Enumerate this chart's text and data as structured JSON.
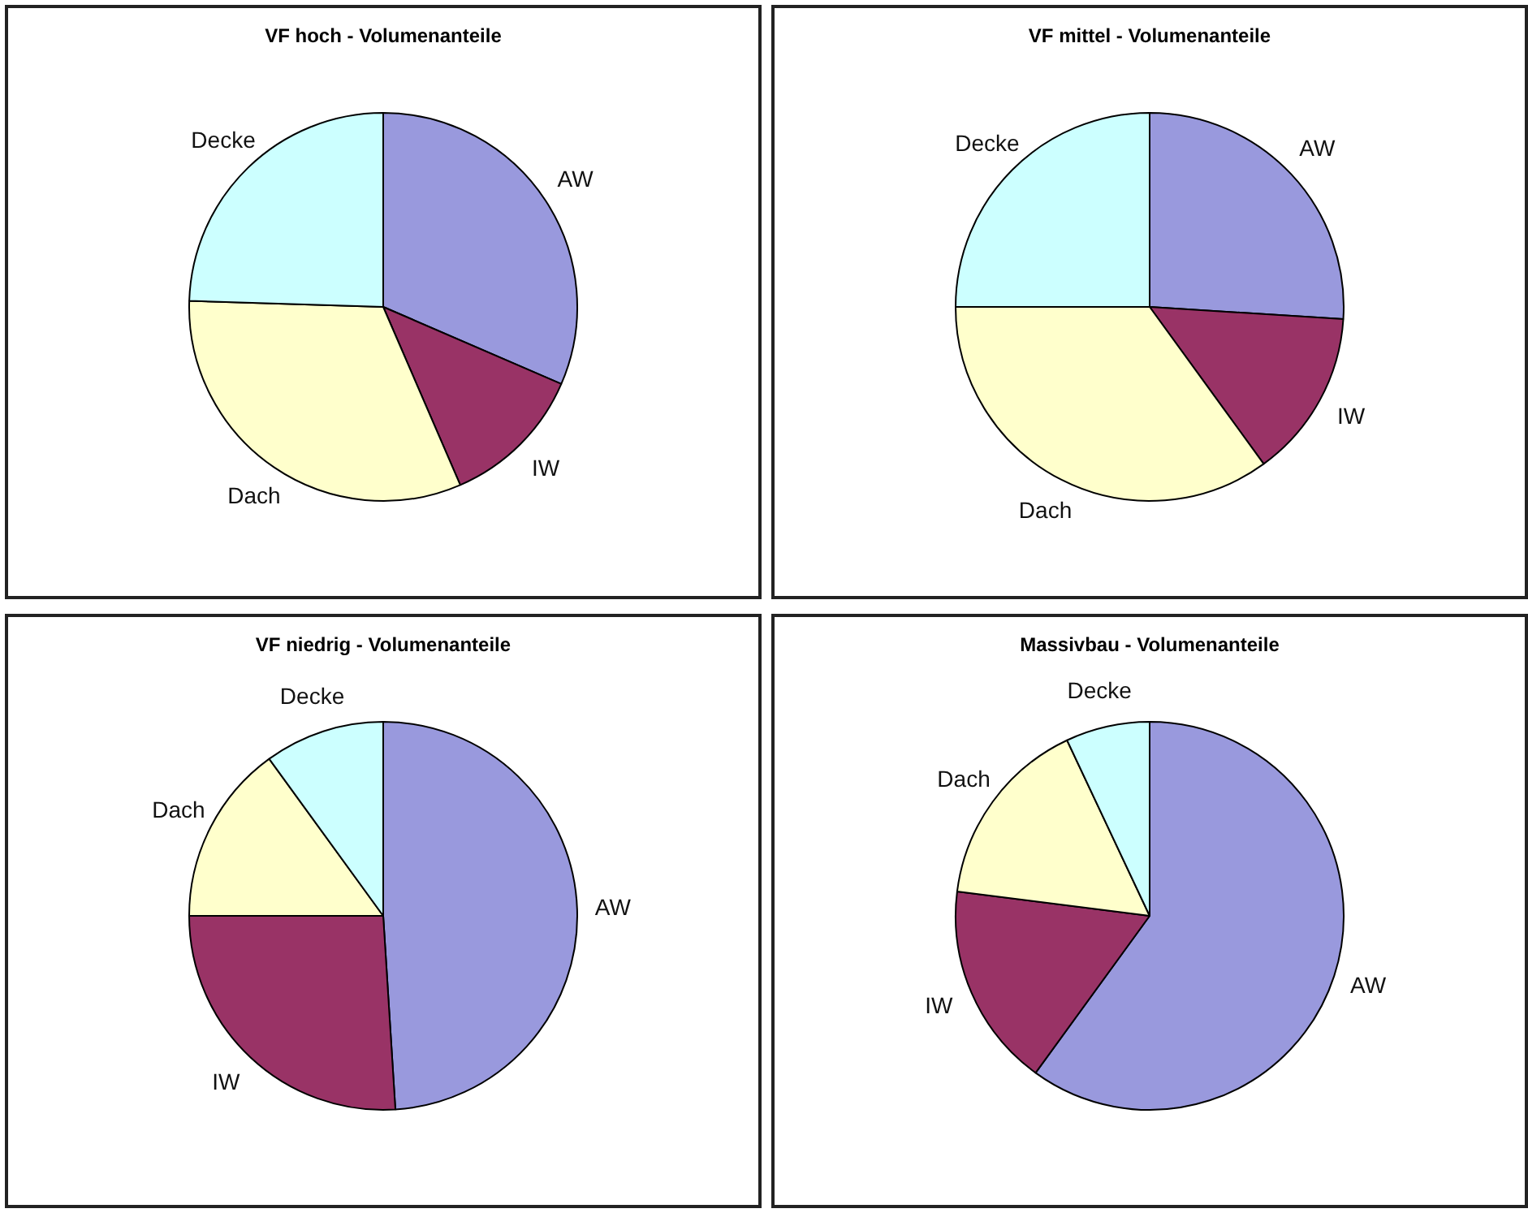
{
  "chart_data": [
    {
      "type": "pie",
      "title": "VF hoch - Volumenanteile",
      "categories": [
        "AW",
        "IW",
        "Dach",
        "Decke"
      ],
      "values": [
        31.5,
        12,
        32,
        24.5
      ],
      "colors": [
        "#9999dd",
        "#993366",
        "#ffffcc",
        "#ccffff"
      ],
      "legend": false
    },
    {
      "type": "pie",
      "title": "VF mittel - Volumenanteile",
      "categories": [
        "AW",
        "IW",
        "Dach",
        "Decke"
      ],
      "values": [
        26,
        14,
        35,
        25
      ],
      "colors": [
        "#9999dd",
        "#993366",
        "#ffffcc",
        "#ccffff"
      ],
      "legend": false
    },
    {
      "type": "pie",
      "title": "VF niedrig - Volumenanteile",
      "categories": [
        "AW",
        "IW",
        "Dach",
        "Decke"
      ],
      "values": [
        49,
        26,
        15,
        10
      ],
      "colors": [
        "#9999dd",
        "#993366",
        "#ffffcc",
        "#ccffff"
      ],
      "legend": false
    },
    {
      "type": "pie",
      "title": "Massivbau - Volumenanteile",
      "categories": [
        "AW",
        "IW",
        "Dach",
        "Decke"
      ],
      "values": [
        60,
        17,
        16,
        7
      ],
      "colors": [
        "#9999dd",
        "#993366",
        "#ffffcc",
        "#ccffff"
      ],
      "legend": false
    }
  ]
}
